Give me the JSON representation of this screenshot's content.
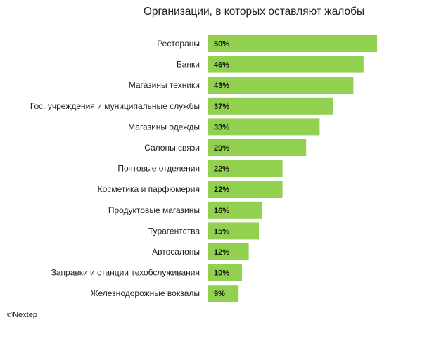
{
  "chart_data": {
    "type": "bar",
    "orientation": "horizontal",
    "title": "Организации, в которых оставляют жалобы",
    "categories": [
      "Рестораны",
      "Банки",
      "Магазины техники",
      "Гос. учреждения и муниципальные службы",
      "Магазины одежды",
      "Салоны связи",
      "Почтовые отделения",
      "Косметика и парфюмерия",
      "Продуктовые магазины",
      "Турагентства",
      "Автосалоны",
      "Заправки и станции техобслуживания",
      "Железнодорожные вокзалы"
    ],
    "values": [
      50,
      46,
      43,
      37,
      33,
      29,
      22,
      22,
      16,
      15,
      12,
      10,
      9
    ],
    "value_labels": [
      "50%",
      "46%",
      "43%",
      "37%",
      "33%",
      "29%",
      "22%",
      "22%",
      "16%",
      "15%",
      "12%",
      "10%",
      "9%"
    ],
    "unit": "%",
    "grid": false,
    "legend": "none",
    "bar_color": "#92D050"
  },
  "source": "©Nextep"
}
